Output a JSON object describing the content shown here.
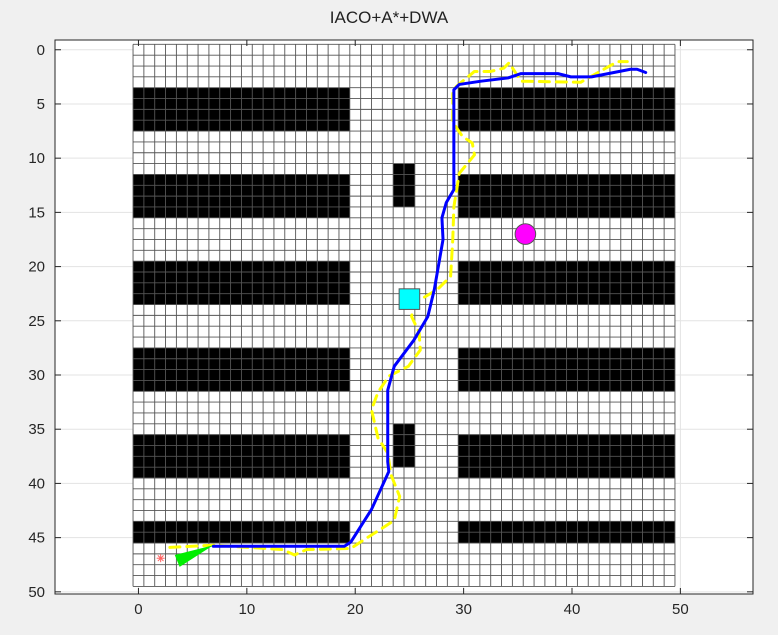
{
  "chart_data": {
    "type": "scatter",
    "title": "IACO+A*+DWA",
    "xlabel": "",
    "ylabel": "",
    "xlim": [
      -7.7,
      56.7
    ],
    "ylim": [
      -0.9,
      50.2
    ],
    "y_reversed": true,
    "grid": true,
    "xticks": [
      0,
      10,
      20,
      30,
      40,
      50
    ],
    "yticks": [
      0,
      5,
      10,
      15,
      20,
      25,
      30,
      35,
      40,
      45,
      50
    ],
    "map": {
      "rows": 50,
      "cols": 50,
      "obstacles": [
        [
          -0.5,
          3.5,
          19.5,
          7.5
        ],
        [
          29.5,
          3.5,
          49.5,
          7.5
        ],
        [
          -0.5,
          11.5,
          19.5,
          15.5
        ],
        [
          29.5,
          11.5,
          49.5,
          15.5
        ],
        [
          -0.5,
          19.5,
          19.5,
          23.5
        ],
        [
          29.5,
          19.5,
          49.5,
          23.5
        ],
        [
          -0.5,
          27.5,
          19.5,
          31.5
        ],
        [
          29.5,
          27.5,
          49.5,
          31.5
        ],
        [
          -0.5,
          35.5,
          19.5,
          39.5
        ],
        [
          29.5,
          35.5,
          49.5,
          39.5
        ],
        [
          -0.5,
          43.5,
          19.5,
          45.5
        ],
        [
          29.5,
          43.5,
          49.5,
          45.5
        ],
        [
          23.5,
          10.5,
          25.5,
          14.5
        ],
        [
          23.5,
          34.5,
          25.5,
          38.5
        ]
      ]
    },
    "series": [
      {
        "style": "dashed",
        "color": "#ffff00",
        "points": [
          [
            2.9,
            45.9
          ],
          [
            6.9,
            45.7
          ],
          [
            13.3,
            46.1
          ],
          [
            14.4,
            46.6
          ],
          [
            15.5,
            46.1
          ],
          [
            19.6,
            46.0
          ],
          [
            20.8,
            45.2
          ],
          [
            22.7,
            44.0
          ],
          [
            23.6,
            43.4
          ],
          [
            24.1,
            41.2
          ],
          [
            23.3,
            39.2
          ],
          [
            23.0,
            37.2
          ],
          [
            22.1,
            35.8
          ],
          [
            21.5,
            33.2
          ],
          [
            22.1,
            31.6
          ],
          [
            23.1,
            30.1
          ],
          [
            24.9,
            29.2
          ],
          [
            26.0,
            27.7
          ],
          [
            25.9,
            26.1
          ],
          [
            25.2,
            24.6
          ],
          [
            25.4,
            23.4
          ],
          [
            27.6,
            22.1
          ],
          [
            28.8,
            20.9
          ],
          [
            29.0,
            17.5
          ],
          [
            29.1,
            14.5
          ],
          [
            29.6,
            11.4
          ],
          [
            31.0,
            9.7
          ],
          [
            30.8,
            8.6
          ],
          [
            29.9,
            8.0
          ],
          [
            29.0,
            6.7
          ],
          [
            29.0,
            4.0
          ],
          [
            29.3,
            3.4
          ],
          [
            31.0,
            2.0
          ],
          [
            32.5,
            2.0
          ],
          [
            33.7,
            1.7
          ],
          [
            34.2,
            1.2
          ],
          [
            35.3,
            2.9
          ],
          [
            40.8,
            3.0
          ],
          [
            42.4,
            2.1
          ],
          [
            44.2,
            1.1
          ],
          [
            45.1,
            1.1
          ]
        ]
      },
      {
        "style": "solid",
        "color": "#0000ff",
        "points": [
          [
            6.9,
            45.8
          ],
          [
            19.0,
            45.8
          ],
          [
            19.6,
            45.4
          ],
          [
            21.5,
            42.4
          ],
          [
            23.1,
            38.9
          ],
          [
            23.0,
            38.0
          ],
          [
            23.0,
            31.4
          ],
          [
            23.6,
            29.2
          ],
          [
            25.4,
            26.8
          ],
          [
            26.7,
            24.6
          ],
          [
            27.3,
            22.1
          ],
          [
            28.1,
            17.5
          ],
          [
            28.0,
            15.5
          ],
          [
            28.4,
            14.1
          ],
          [
            29.1,
            12.9
          ],
          [
            29.1,
            3.7
          ],
          [
            29.6,
            3.2
          ],
          [
            31.6,
            2.9
          ],
          [
            34.1,
            2.6
          ],
          [
            35.3,
            2.2
          ],
          [
            38.7,
            2.2
          ],
          [
            39.9,
            2.5
          ],
          [
            41.8,
            2.5
          ],
          [
            45.4,
            1.8
          ],
          [
            46.0,
            1.8
          ],
          [
            46.8,
            2.1
          ]
        ]
      }
    ],
    "markers": {
      "start": {
        "shape": "star",
        "color": "#ff6060",
        "x": 2.05,
        "y": 46.9
      },
      "robot": {
        "shape": "triangle",
        "color": "#00ee00",
        "points": [
          [
            3.35,
            46.6
          ],
          [
            6.9,
            45.7
          ],
          [
            3.8,
            47.7
          ]
        ]
      },
      "obstacle_dynamic_circle": {
        "shape": "circle",
        "color": "#ff00ff",
        "x": 35.7,
        "y": 17,
        "r": 0.95
      },
      "obstacle_dynamic_square": {
        "shape": "square",
        "color": "#00ffff",
        "x": 25,
        "y": 23,
        "half": 0.95
      }
    }
  }
}
